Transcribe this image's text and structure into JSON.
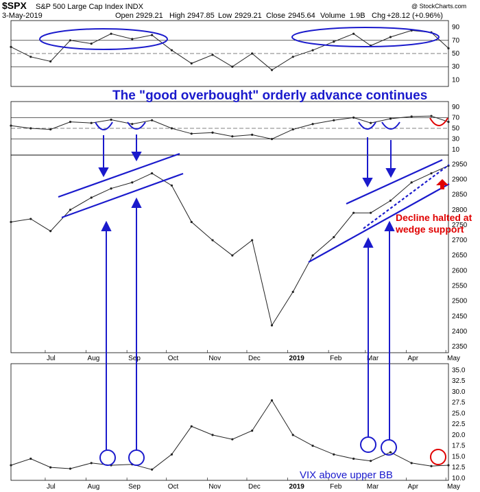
{
  "header": {
    "symbol": "$SPX",
    "name": "S&P 500 Large Cap Index INDX",
    "date": "3-May-2019",
    "open_label": "Open",
    "open": "2929.21",
    "high_label": "High",
    "high": "2947.85",
    "low_label": "Low",
    "low": "2929.21",
    "close_label": "Close",
    "close": "2945.64",
    "volume_label": "Volume",
    "volume": "1.9B",
    "chg_label": "Chg",
    "chg": "+28.12 (+0.96%)",
    "watermark": "@ StockCharts.com"
  },
  "annotations": {
    "headline": "The \"good overbought\" orderly advance continues",
    "decline_line1": "Decline halted at",
    "decline_line2": "wedge support",
    "vix": "VIX above upper BB"
  },
  "colors": {
    "accent_blue": "#1a1acc",
    "accent_red": "#e00000",
    "up_candle": "#000000",
    "down_candle": "#c8102e",
    "rsi_fill_high": "#4f7a4f",
    "rsi_fill_low": "#8b4a4a"
  },
  "chart_data": [
    {
      "type": "line",
      "panel": "RSI (upper)",
      "yticks": [
        "90",
        "70",
        "50",
        "30",
        "10"
      ],
      "ylim": [
        0,
        100
      ],
      "reference_lines": [
        70,
        50,
        30
      ],
      "x": [
        "2018-06-05",
        "2018-06-20",
        "2018-07-05",
        "2018-07-20",
        "2018-08-05",
        "2018-08-20",
        "2018-09-05",
        "2018-09-20",
        "2018-10-05",
        "2018-10-20",
        "2018-11-05",
        "2018-11-20",
        "2018-12-05",
        "2018-12-20",
        "2019-01-05",
        "2019-01-20",
        "2019-02-05",
        "2019-02-20",
        "2019-03-05",
        "2019-03-20",
        "2019-04-05",
        "2019-04-20",
        "2019-05-03"
      ],
      "values": [
        60,
        45,
        38,
        70,
        65,
        80,
        72,
        78,
        55,
        35,
        48,
        30,
        50,
        25,
        45,
        55,
        68,
        80,
        62,
        75,
        85,
        82,
        58
      ]
    },
    {
      "type": "line",
      "panel": "RSI (lower)",
      "yticks": [
        "90",
        "70",
        "50",
        "30",
        "10"
      ],
      "ylim": [
        0,
        100
      ],
      "reference_lines": [
        70,
        50,
        30
      ],
      "x": [
        "2018-06-05",
        "2018-06-20",
        "2018-07-05",
        "2018-07-20",
        "2018-08-05",
        "2018-08-20",
        "2018-09-05",
        "2018-09-20",
        "2018-10-05",
        "2018-10-20",
        "2018-11-05",
        "2018-11-20",
        "2018-12-05",
        "2018-12-20",
        "2019-01-05",
        "2019-01-20",
        "2019-02-05",
        "2019-02-20",
        "2019-03-05",
        "2019-03-20",
        "2019-04-05",
        "2019-04-20",
        "2019-05-03"
      ],
      "values": [
        55,
        50,
        48,
        62,
        60,
        66,
        58,
        65,
        50,
        40,
        42,
        35,
        38,
        30,
        48,
        58,
        65,
        70,
        60,
        68,
        72,
        73,
        62
      ]
    },
    {
      "type": "line",
      "panel": "$SPX",
      "yticks": [
        "2950",
        "2900",
        "2850",
        "2800",
        "2750",
        "2700",
        "2650",
        "2600",
        "2550",
        "2500",
        "2450",
        "2400",
        "2350"
      ],
      "ylim": [
        2330,
        2980
      ],
      "xticks": [
        "Jul",
        "Aug",
        "Sep",
        "Oct",
        "Nov",
        "Dec",
        "2019",
        "Feb",
        "Mar",
        "Apr",
        "May"
      ],
      "x": [
        "2018-06-05",
        "2018-06-20",
        "2018-07-05",
        "2018-07-20",
        "2018-08-05",
        "2018-08-20",
        "2018-09-05",
        "2018-09-20",
        "2018-10-05",
        "2018-10-20",
        "2018-11-05",
        "2018-11-20",
        "2018-12-05",
        "2018-12-20",
        "2019-01-05",
        "2019-01-20",
        "2019-02-05",
        "2019-02-20",
        "2019-03-05",
        "2019-03-20",
        "2019-04-05",
        "2019-04-20",
        "2019-05-03"
      ],
      "values": [
        2760,
        2770,
        2730,
        2800,
        2840,
        2870,
        2890,
        2920,
        2880,
        2760,
        2700,
        2650,
        2700,
        2420,
        2530,
        2650,
        2710,
        2790,
        2790,
        2830,
        2890,
        2920,
        2945
      ]
    },
    {
      "type": "line",
      "panel": "VIX",
      "yticks": [
        "35.0",
        "32.5",
        "30.0",
        "27.5",
        "25.0",
        "22.5",
        "20.0",
        "17.5",
        "15.0",
        "12.5",
        "10.0"
      ],
      "ylim": [
        9.5,
        36.5
      ],
      "xticks": [
        "Jul",
        "Aug",
        "Sep",
        "Oct",
        "Nov",
        "Dec",
        "2019",
        "Feb",
        "Mar",
        "Apr",
        "May"
      ],
      "x": [
        "2018-06-05",
        "2018-06-20",
        "2018-07-05",
        "2018-07-20",
        "2018-08-05",
        "2018-08-20",
        "2018-09-05",
        "2018-09-20",
        "2018-10-05",
        "2018-10-20",
        "2018-11-05",
        "2018-11-20",
        "2018-12-05",
        "2018-12-20",
        "2019-01-05",
        "2019-01-20",
        "2019-02-05",
        "2019-02-20",
        "2019-03-05",
        "2019-03-20",
        "2019-04-05",
        "2019-04-20",
        "2019-05-03"
      ],
      "values": [
        13.0,
        14.5,
        12.5,
        12.2,
        13.5,
        13.0,
        13.2,
        12.0,
        15.5,
        22.0,
        20.0,
        19.0,
        21.0,
        28.0,
        20.0,
        17.5,
        15.5,
        14.5,
        14.0,
        16.0,
        13.5,
        12.8,
        13.0
      ]
    }
  ]
}
